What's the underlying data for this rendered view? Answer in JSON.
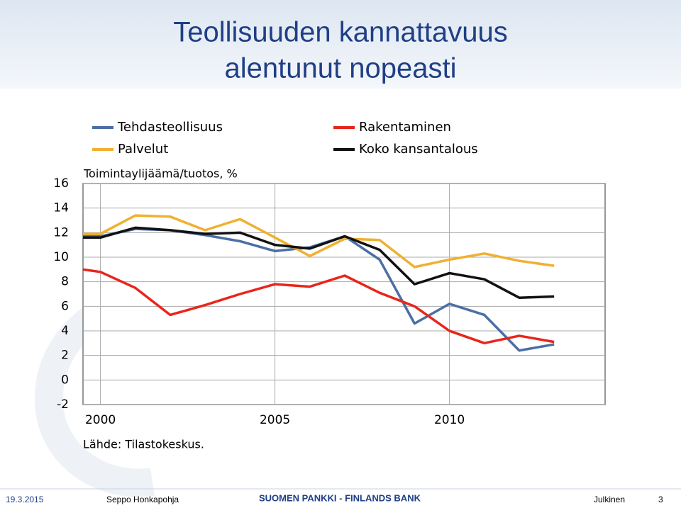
{
  "title": [
    "Teollisuuden kannattavuus",
    "alentunut nopeasti"
  ],
  "footer": {
    "date": "19.3.2015",
    "author": "Seppo Honkapohja",
    "organization": "SUOMEN PANKKI - FINLANDS BANK",
    "classification": "Julkinen",
    "page": "3"
  },
  "chart_data": {
    "type": "line",
    "y_label": "Toimintaylijäämä/tuotos, %",
    "source": "Lähde: Tilastokeskus.",
    "x": [
      1999.5,
      2000,
      2001,
      2002,
      2003,
      2004,
      2005,
      2006,
      2007,
      2008,
      2009,
      2010,
      2011,
      2012,
      2013
    ],
    "series": [
      {
        "name": "Tehdasteollisuus",
        "color": "#4a6fa5",
        "values": [
          11.8,
          11.7,
          12.3,
          12.2,
          11.8,
          11.3,
          10.5,
          10.8,
          11.7,
          9.8,
          4.6,
          6.2,
          5.3,
          2.4,
          2.9
        ]
      },
      {
        "name": "Rakentaminen",
        "color": "#e8251b",
        "values": [
          9.0,
          8.8,
          7.5,
          5.3,
          6.1,
          7.0,
          7.8,
          7.6,
          8.5,
          7.1,
          6.0,
          4.0,
          3.0,
          3.6,
          3.1
        ]
      },
      {
        "name": "Palvelut",
        "color": "#f0b030",
        "values": [
          11.9,
          11.9,
          13.4,
          13.3,
          12.2,
          13.1,
          11.6,
          10.1,
          11.5,
          11.4,
          9.2,
          9.8,
          10.3,
          9.7,
          9.3
        ]
      },
      {
        "name": "Koko kansantalous",
        "color": "#111111",
        "values": [
          11.6,
          11.6,
          12.4,
          12.2,
          11.9,
          12.0,
          11.0,
          10.7,
          11.7,
          10.6,
          7.8,
          8.7,
          8.2,
          6.7,
          6.8
        ]
      }
    ],
    "xlim": [
      1999.5,
      2014.46
    ],
    "xticks": [
      2000,
      2005,
      2010
    ],
    "ylim": [
      -2,
      16
    ],
    "yticks": [
      -2,
      0,
      2,
      4,
      6,
      8,
      10,
      12,
      14,
      16
    ],
    "grid": true
  }
}
